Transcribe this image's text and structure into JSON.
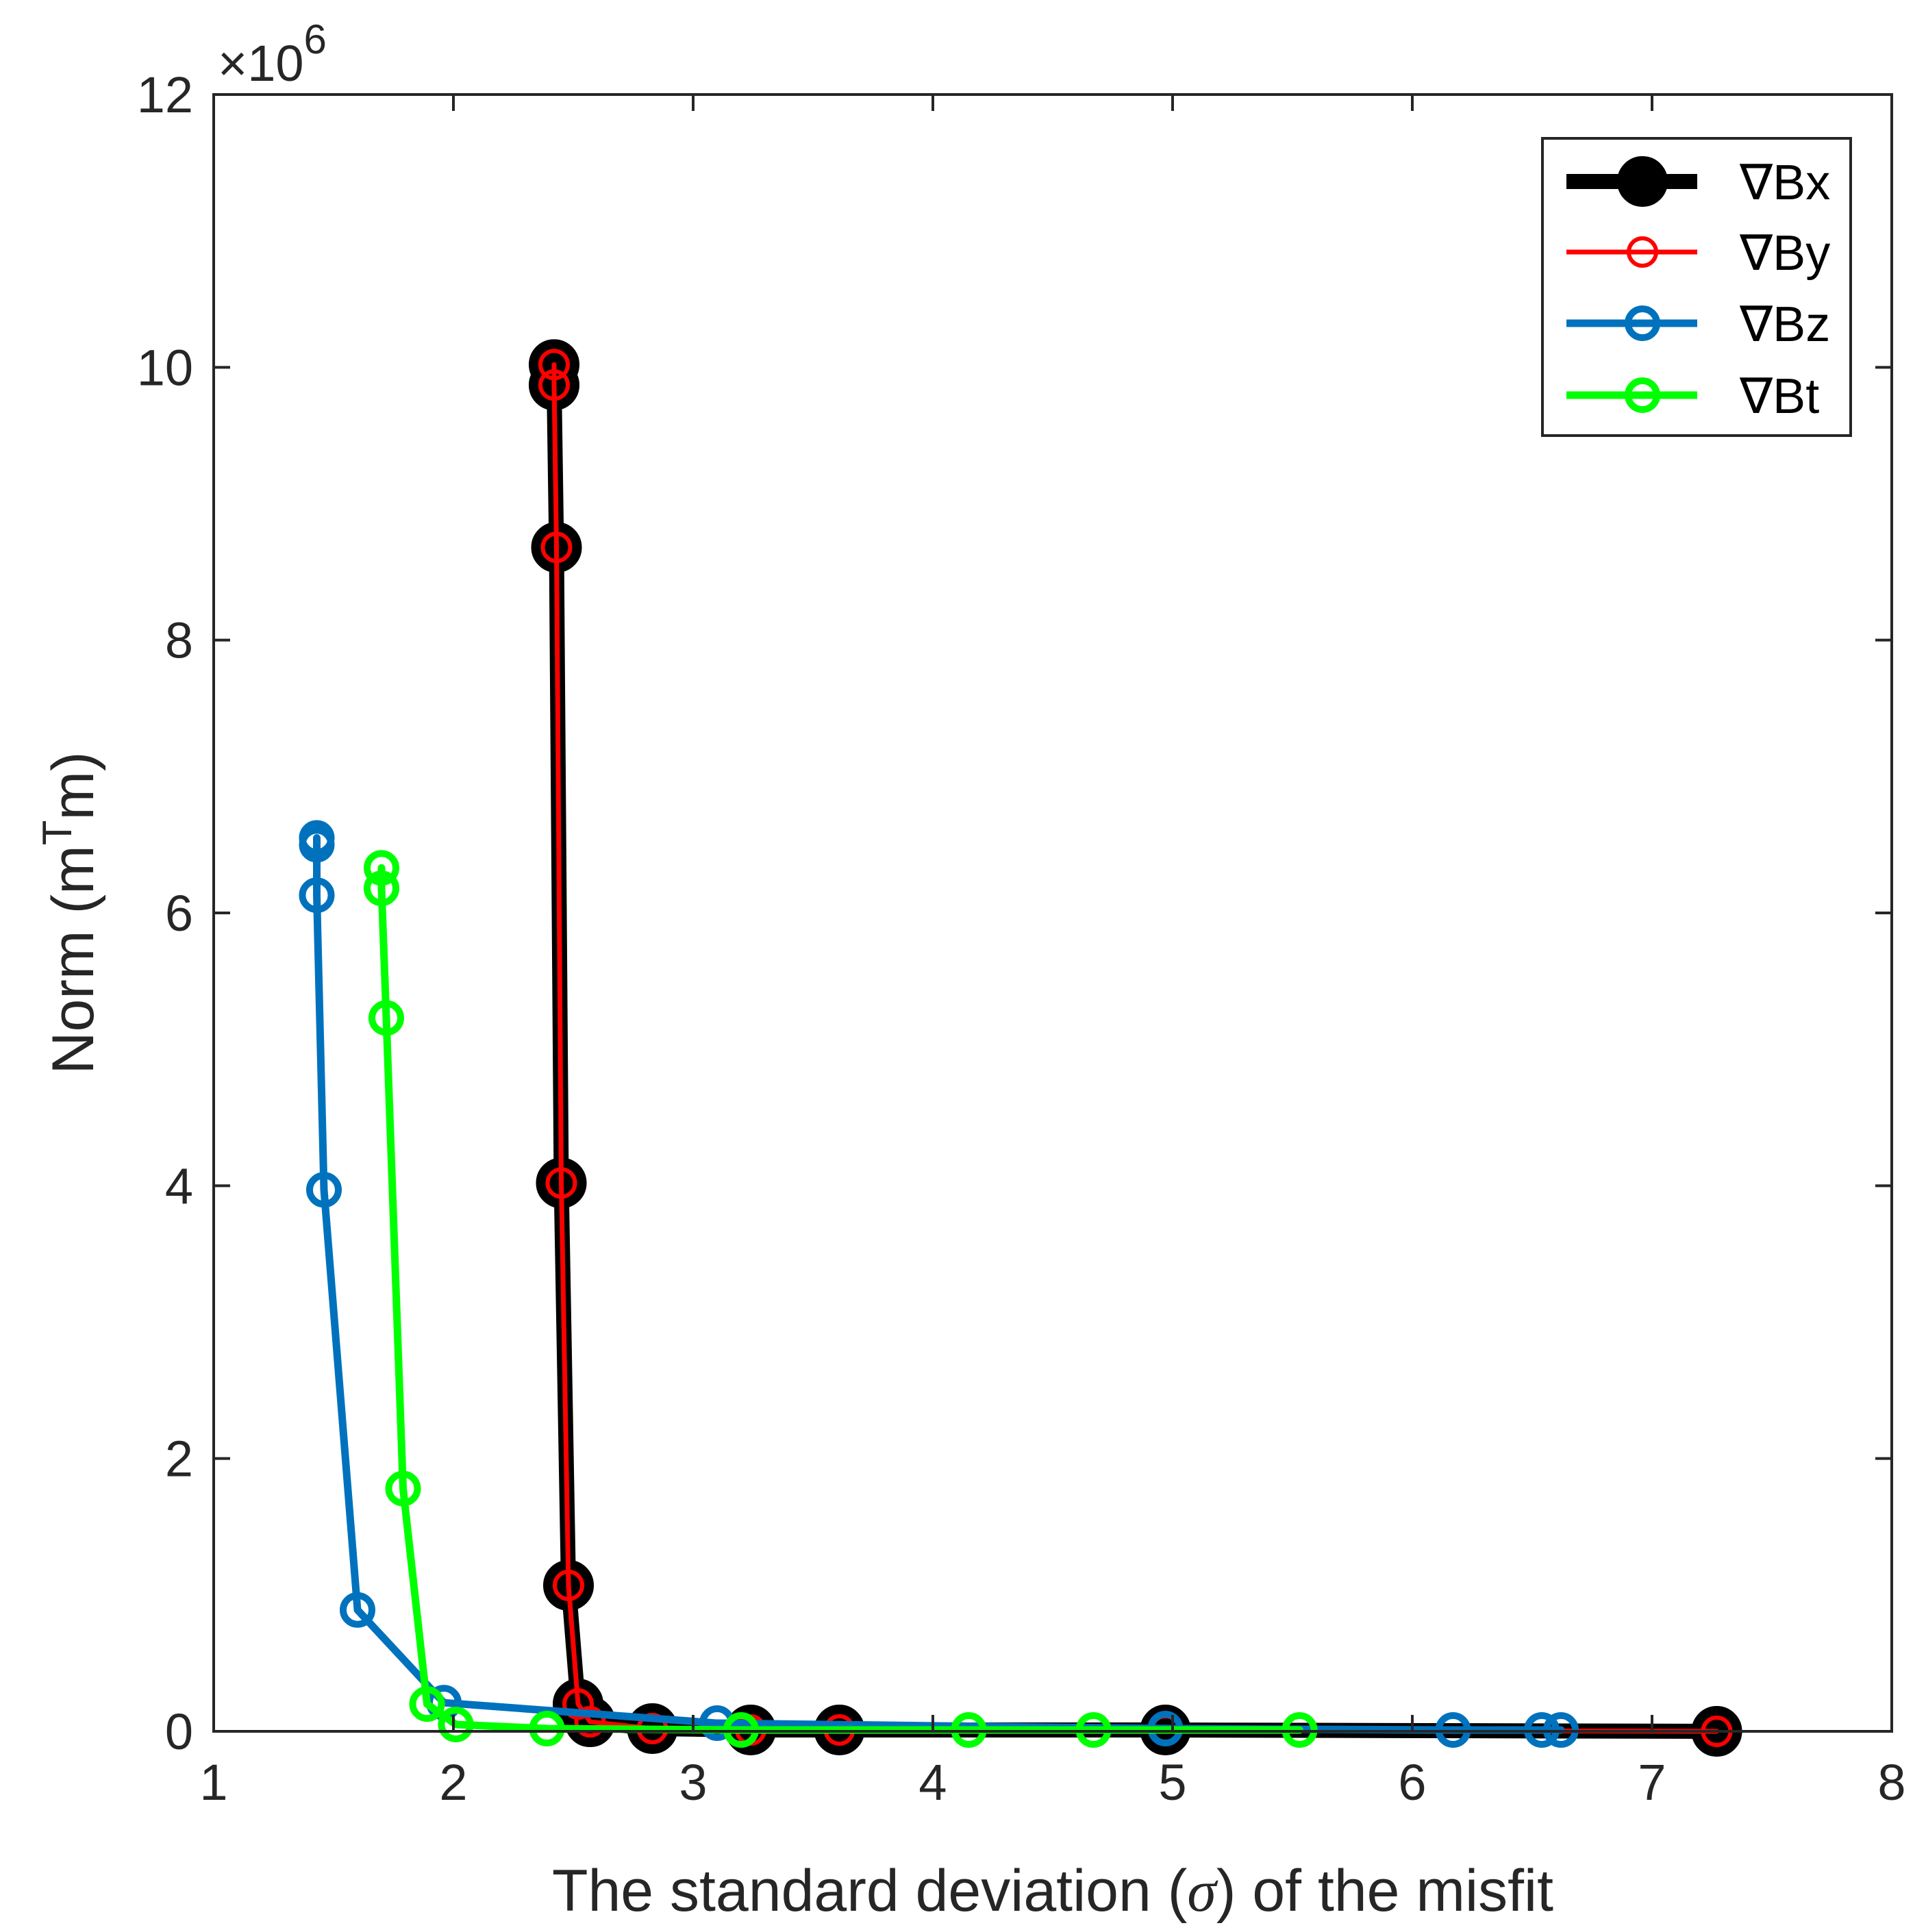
{
  "chart_data": {
    "type": "line",
    "title": "",
    "xlabel": "The standard deviation (σ) of the misfit",
    "xlabel_parts": {
      "before": "The standard deviation (",
      "symbol": "σ",
      "after": ") of the misfit"
    },
    "ylabel": "Norm (m",
    "ylabel_superscript": "T",
    "ylabel_suffix": "m)",
    "exponent_label": "×10",
    "exponent_power": "6",
    "xlim": [
      1,
      8
    ],
    "ylim": [
      0,
      12
    ],
    "xticks": [
      1,
      2,
      3,
      4,
      5,
      6,
      7,
      8
    ],
    "yticks": [
      0,
      2,
      4,
      6,
      8,
      10,
      12
    ],
    "xtick_labels": [
      "1",
      "2",
      "3",
      "4",
      "5",
      "6",
      "7",
      "8"
    ],
    "ytick_labels": [
      "0",
      "2",
      "4",
      "6",
      "8",
      "10",
      "12"
    ],
    "legend_position": "top-right",
    "series": [
      {
        "name": "∇Bx",
        "color": "#000000",
        "style": "thick",
        "x": [
          2.42,
          2.42,
          2.43,
          2.45,
          2.48,
          2.52,
          2.57,
          2.83,
          3.24,
          3.61,
          4.97,
          7.27
        ],
        "y": [
          10.02,
          9.87,
          8.68,
          4.02,
          1.07,
          0.2,
          0.07,
          0.02,
          0.01,
          0.01,
          0.01,
          0.0
        ]
      },
      {
        "name": "∇By",
        "color": "#ff0000",
        "style": "thin",
        "x": [
          2.42,
          2.42,
          2.43,
          2.45,
          2.48,
          2.52,
          2.57,
          2.83,
          3.24,
          3.61,
          4.97,
          7.27
        ],
        "y": [
          10.02,
          9.87,
          8.68,
          4.02,
          1.07,
          0.2,
          0.07,
          0.02,
          0.01,
          0.01,
          0.01,
          0.0
        ]
      },
      {
        "name": "∇Bz",
        "color": "#0072bd",
        "style": "medium",
        "x": [
          1.43,
          1.43,
          1.43,
          1.46,
          1.6,
          1.96,
          3.1,
          4.97,
          6.17,
          6.54,
          6.62
        ],
        "y": [
          6.55,
          6.5,
          6.13,
          3.97,
          0.89,
          0.21,
          0.06,
          0.02,
          0.01,
          0.01,
          0.01
        ],
        "line_x": [
          1.43,
          1.43,
          1.46,
          1.6,
          1.96,
          3.1,
          4.97,
          6.17,
          6.54,
          6.62
        ],
        "line_y": [
          6.55,
          6.13,
          3.97,
          0.89,
          0.21,
          0.06,
          0.02,
          0.01,
          0.01,
          0.01
        ]
      },
      {
        "name": "∇Bt",
        "color": "#00ff00",
        "style": "medium",
        "x": [
          1.7,
          1.7,
          1.72,
          1.79,
          1.89,
          2.01,
          2.39,
          3.2,
          4.15,
          4.67,
          5.53
        ],
        "y": [
          6.33,
          6.18,
          5.23,
          1.78,
          0.2,
          0.05,
          0.02,
          0.01,
          0.01,
          0.01,
          0.01
        ]
      }
    ]
  }
}
